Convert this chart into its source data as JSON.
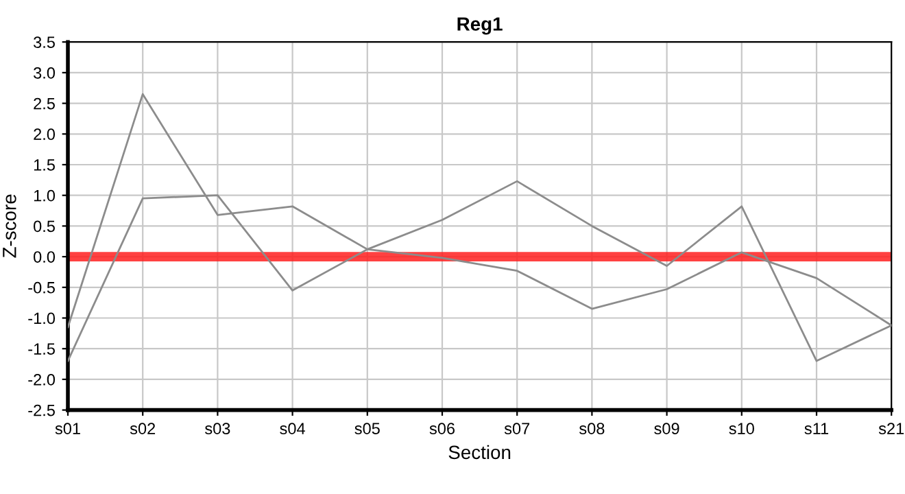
{
  "chart_data": {
    "type": "line",
    "title": "Reg1",
    "xlabel": "Section",
    "ylabel": "Z-score",
    "categories": [
      "s01",
      "s02",
      "s03",
      "s04",
      "s05",
      "s06",
      "s07",
      "s08",
      "s09",
      "s10",
      "s11",
      "s21"
    ],
    "series": [
      {
        "color": "#8c8c8c",
        "values": [
          -1.15,
          2.65,
          0.68,
          0.82,
          0.12,
          -0.02,
          -0.23,
          -0.85,
          -0.53,
          0.07,
          -0.35,
          -1.12
        ]
      },
      {
        "color": "#8c8c8c",
        "values": [
          -1.7,
          0.95,
          1.0,
          -0.55,
          0.12,
          0.6,
          1.23,
          0.5,
          -0.15,
          0.82,
          -1.7,
          -1.12
        ]
      }
    ],
    "ylim": [
      -2.5,
      3.5
    ],
    "yticks": [
      {
        "value": -2.5,
        "label": "-2.5"
      },
      {
        "value": -2.0,
        "label": "-2.0"
      },
      {
        "value": -1.5,
        "label": "-1.5"
      },
      {
        "value": -1.0,
        "label": "-1.0"
      },
      {
        "value": -0.5,
        "label": "-0.5"
      },
      {
        "value": 0.0,
        "label": "0.0"
      },
      {
        "value": 0.5,
        "label": "0.5"
      },
      {
        "value": 1.0,
        "label": "1.0"
      },
      {
        "value": 1.5,
        "label": "1.5"
      },
      {
        "value": 2.0,
        "label": "2.0"
      },
      {
        "value": 2.5,
        "label": "2.5"
      },
      {
        "value": 3.0,
        "label": "3.0"
      },
      {
        "value": 3.5,
        "label": "3.5"
      }
    ],
    "ref_lines": [
      {
        "axis": "y",
        "value": 0,
        "color": "#ff2020",
        "line_style": "solid"
      }
    ],
    "grid": true,
    "legend": false,
    "marker": "none",
    "line_style": "solid"
  }
}
